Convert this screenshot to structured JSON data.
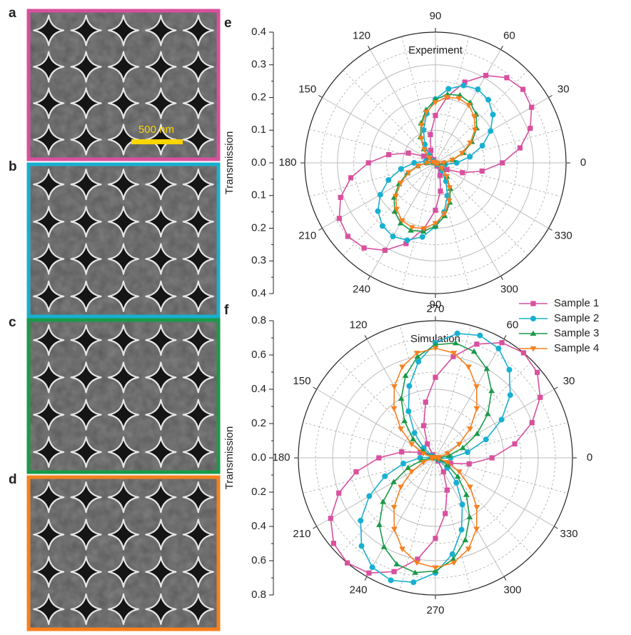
{
  "panels": [
    {
      "label": "a",
      "color": "#d8509e"
    },
    {
      "label": "b",
      "color": "#18b0d0"
    },
    {
      "label": "c",
      "color": "#1a9a4a"
    },
    {
      "label": "d",
      "color": "#f7801e"
    }
  ],
  "scale_bar": "500 nm",
  "chart_data": [
    {
      "type": "polar",
      "panel_label": "e",
      "annotation": "Experiment",
      "y_label": "Transmission",
      "x": [
        0,
        10,
        20,
        30,
        40,
        50,
        60,
        70,
        80,
        90,
        100,
        110,
        120,
        130,
        140,
        150,
        160,
        170,
        180,
        190,
        200,
        210,
        220,
        230,
        240,
        250,
        260,
        270,
        280,
        290,
        300,
        310,
        320,
        330,
        340,
        350
      ],
      "xticks": [
        0,
        30,
        60,
        90,
        120,
        150,
        180,
        210,
        240,
        270,
        300,
        330
      ],
      "ylim": [
        0,
        0.4
      ],
      "yticks": [
        {
          "value": 0,
          "label": "0.0"
        },
        0.1,
        0.2,
        0.3,
        0.4
      ],
      "grid": true,
      "series": [
        {
          "name": "Sample 1",
          "color": "#d8509e",
          "marker": "square",
          "values": [
            0.205,
            0.263,
            0.309,
            0.34,
            0.35,
            0.34,
            0.309,
            0.263,
            0.205,
            0.145,
            0.088,
            0.041,
            0.011,
            0,
            0.011,
            0.041,
            0.088,
            0.145,
            0.205,
            0.263,
            0.309,
            0.34,
            0.35,
            0.34,
            0.309,
            0.263,
            0.205,
            0.145,
            0.088,
            0.041,
            0.011,
            0,
            0.011,
            0.041,
            0.088,
            0.145
          ]
        },
        {
          "name": "Sample 2",
          "color": "#18b0d0",
          "marker": "circle",
          "values": [
            0.065,
            0.107,
            0.153,
            0.195,
            0.23,
            0.252,
            0.26,
            0.252,
            0.23,
            0.195,
            0.153,
            0.107,
            0.065,
            0.03,
            0.008,
            0,
            0.008,
            0.03,
            0.065,
            0.107,
            0.153,
            0.195,
            0.23,
            0.252,
            0.26,
            0.252,
            0.23,
            0.195,
            0.153,
            0.107,
            0.065,
            0.03,
            0.008,
            0,
            0.008,
            0.03
          ]
        },
        {
          "name": "Sample 3",
          "color": "#1a9a4a",
          "marker": "triangle-up",
          "values": [
            0.026,
            0.055,
            0.091,
            0.129,
            0.165,
            0.194,
            0.213,
            0.22,
            0.213,
            0.194,
            0.165,
            0.129,
            0.091,
            0.055,
            0.026,
            0.007,
            0,
            0.007,
            0.026,
            0.055,
            0.091,
            0.129,
            0.165,
            0.194,
            0.213,
            0.22,
            0.213,
            0.194,
            0.165,
            0.129,
            0.091,
            0.055,
            0.026,
            0.007,
            0,
            0.007
          ]
        },
        {
          "name": "Sample 4",
          "color": "#f7801e",
          "marker": "triangle-down",
          "values": [
            0.025,
            0.053,
            0.087,
            0.123,
            0.158,
            0.185,
            0.204,
            0.21,
            0.204,
            0.185,
            0.158,
            0.123,
            0.087,
            0.053,
            0.025,
            0.006,
            0,
            0.006,
            0.025,
            0.053,
            0.087,
            0.123,
            0.158,
            0.185,
            0.204,
            0.21,
            0.204,
            0.185,
            0.158,
            0.123,
            0.087,
            0.053,
            0.025,
            0.006,
            0,
            0.006
          ]
        }
      ]
    },
    {
      "type": "polar",
      "panel_label": "f",
      "annotation": "Simulation",
      "y_label": "Transmission",
      "x": [
        0,
        10,
        20,
        30,
        40,
        50,
        60,
        70,
        80,
        90,
        100,
        110,
        120,
        130,
        140,
        150,
        160,
        170,
        180,
        190,
        200,
        210,
        220,
        230,
        240,
        250,
        260,
        270,
        280,
        290,
        300,
        310,
        320,
        330,
        340,
        350
      ],
      "xticks": [
        0,
        30,
        60,
        90,
        120,
        150,
        180,
        210,
        240,
        270,
        300,
        330
      ],
      "ylim": [
        0,
        0.8
      ],
      "yticks": [
        {
          "value": 0,
          "label": "0.0"
        },
        0.2,
        0.4,
        0.6,
        0.8
      ],
      "grid": true,
      "series": [
        {
          "name": "Sample 1",
          "color": "#d8509e",
          "marker": "square",
          "values": [
            0.33,
            0.47,
            0.6,
            0.706,
            0.776,
            0.8,
            0.776,
            0.706,
            0.6,
            0.47,
            0.33,
            0.2,
            0.094,
            0.024,
            0,
            0.024,
            0.094,
            0.2,
            0.33,
            0.47,
            0.6,
            0.706,
            0.776,
            0.8,
            0.776,
            0.706,
            0.6,
            0.47,
            0.33,
            0.2,
            0.094,
            0.024,
            0,
            0.024,
            0.094,
            0.2
          ]
        },
        {
          "name": "Sample 2",
          "color": "#18b0d0",
          "marker": "circle",
          "values": [
            0.089,
            0.19,
            0.314,
            0.446,
            0.57,
            0.671,
            0.737,
            0.76,
            0.737,
            0.671,
            0.57,
            0.446,
            0.314,
            0.19,
            0.089,
            0.023,
            0,
            0.023,
            0.089,
            0.19,
            0.314,
            0.446,
            0.57,
            0.671,
            0.737,
            0.76,
            0.737,
            0.671,
            0.57,
            0.446,
            0.314,
            0.19,
            0.089,
            0.023,
            0,
            0.023
          ]
        },
        {
          "name": "Sample 3",
          "color": "#1a9a4a",
          "marker": "triangle-up",
          "values": [
            0.02,
            0.08,
            0.17,
            0.281,
            0.399,
            0.51,
            0.6,
            0.66,
            0.68,
            0.66,
            0.6,
            0.51,
            0.399,
            0.281,
            0.17,
            0.08,
            0.02,
            0,
            0.02,
            0.08,
            0.17,
            0.281,
            0.399,
            0.51,
            0.6,
            0.66,
            0.68,
            0.66,
            0.6,
            0.51,
            0.399,
            0.281,
            0.17,
            0.08,
            0.02,
            0
          ]
        },
        {
          "name": "Sample 4",
          "color": "#f7801e",
          "marker": "triangle-down",
          "values": [
            0,
            0.019,
            0.075,
            0.16,
            0.264,
            0.376,
            0.48,
            0.565,
            0.621,
            0.64,
            0.621,
            0.565,
            0.48,
            0.376,
            0.264,
            0.16,
            0.075,
            0.019,
            0,
            0.019,
            0.075,
            0.16,
            0.264,
            0.376,
            0.48,
            0.565,
            0.621,
            0.64,
            0.621,
            0.565,
            0.48,
            0.376,
            0.264,
            0.16,
            0.075,
            0.019
          ]
        }
      ]
    }
  ]
}
